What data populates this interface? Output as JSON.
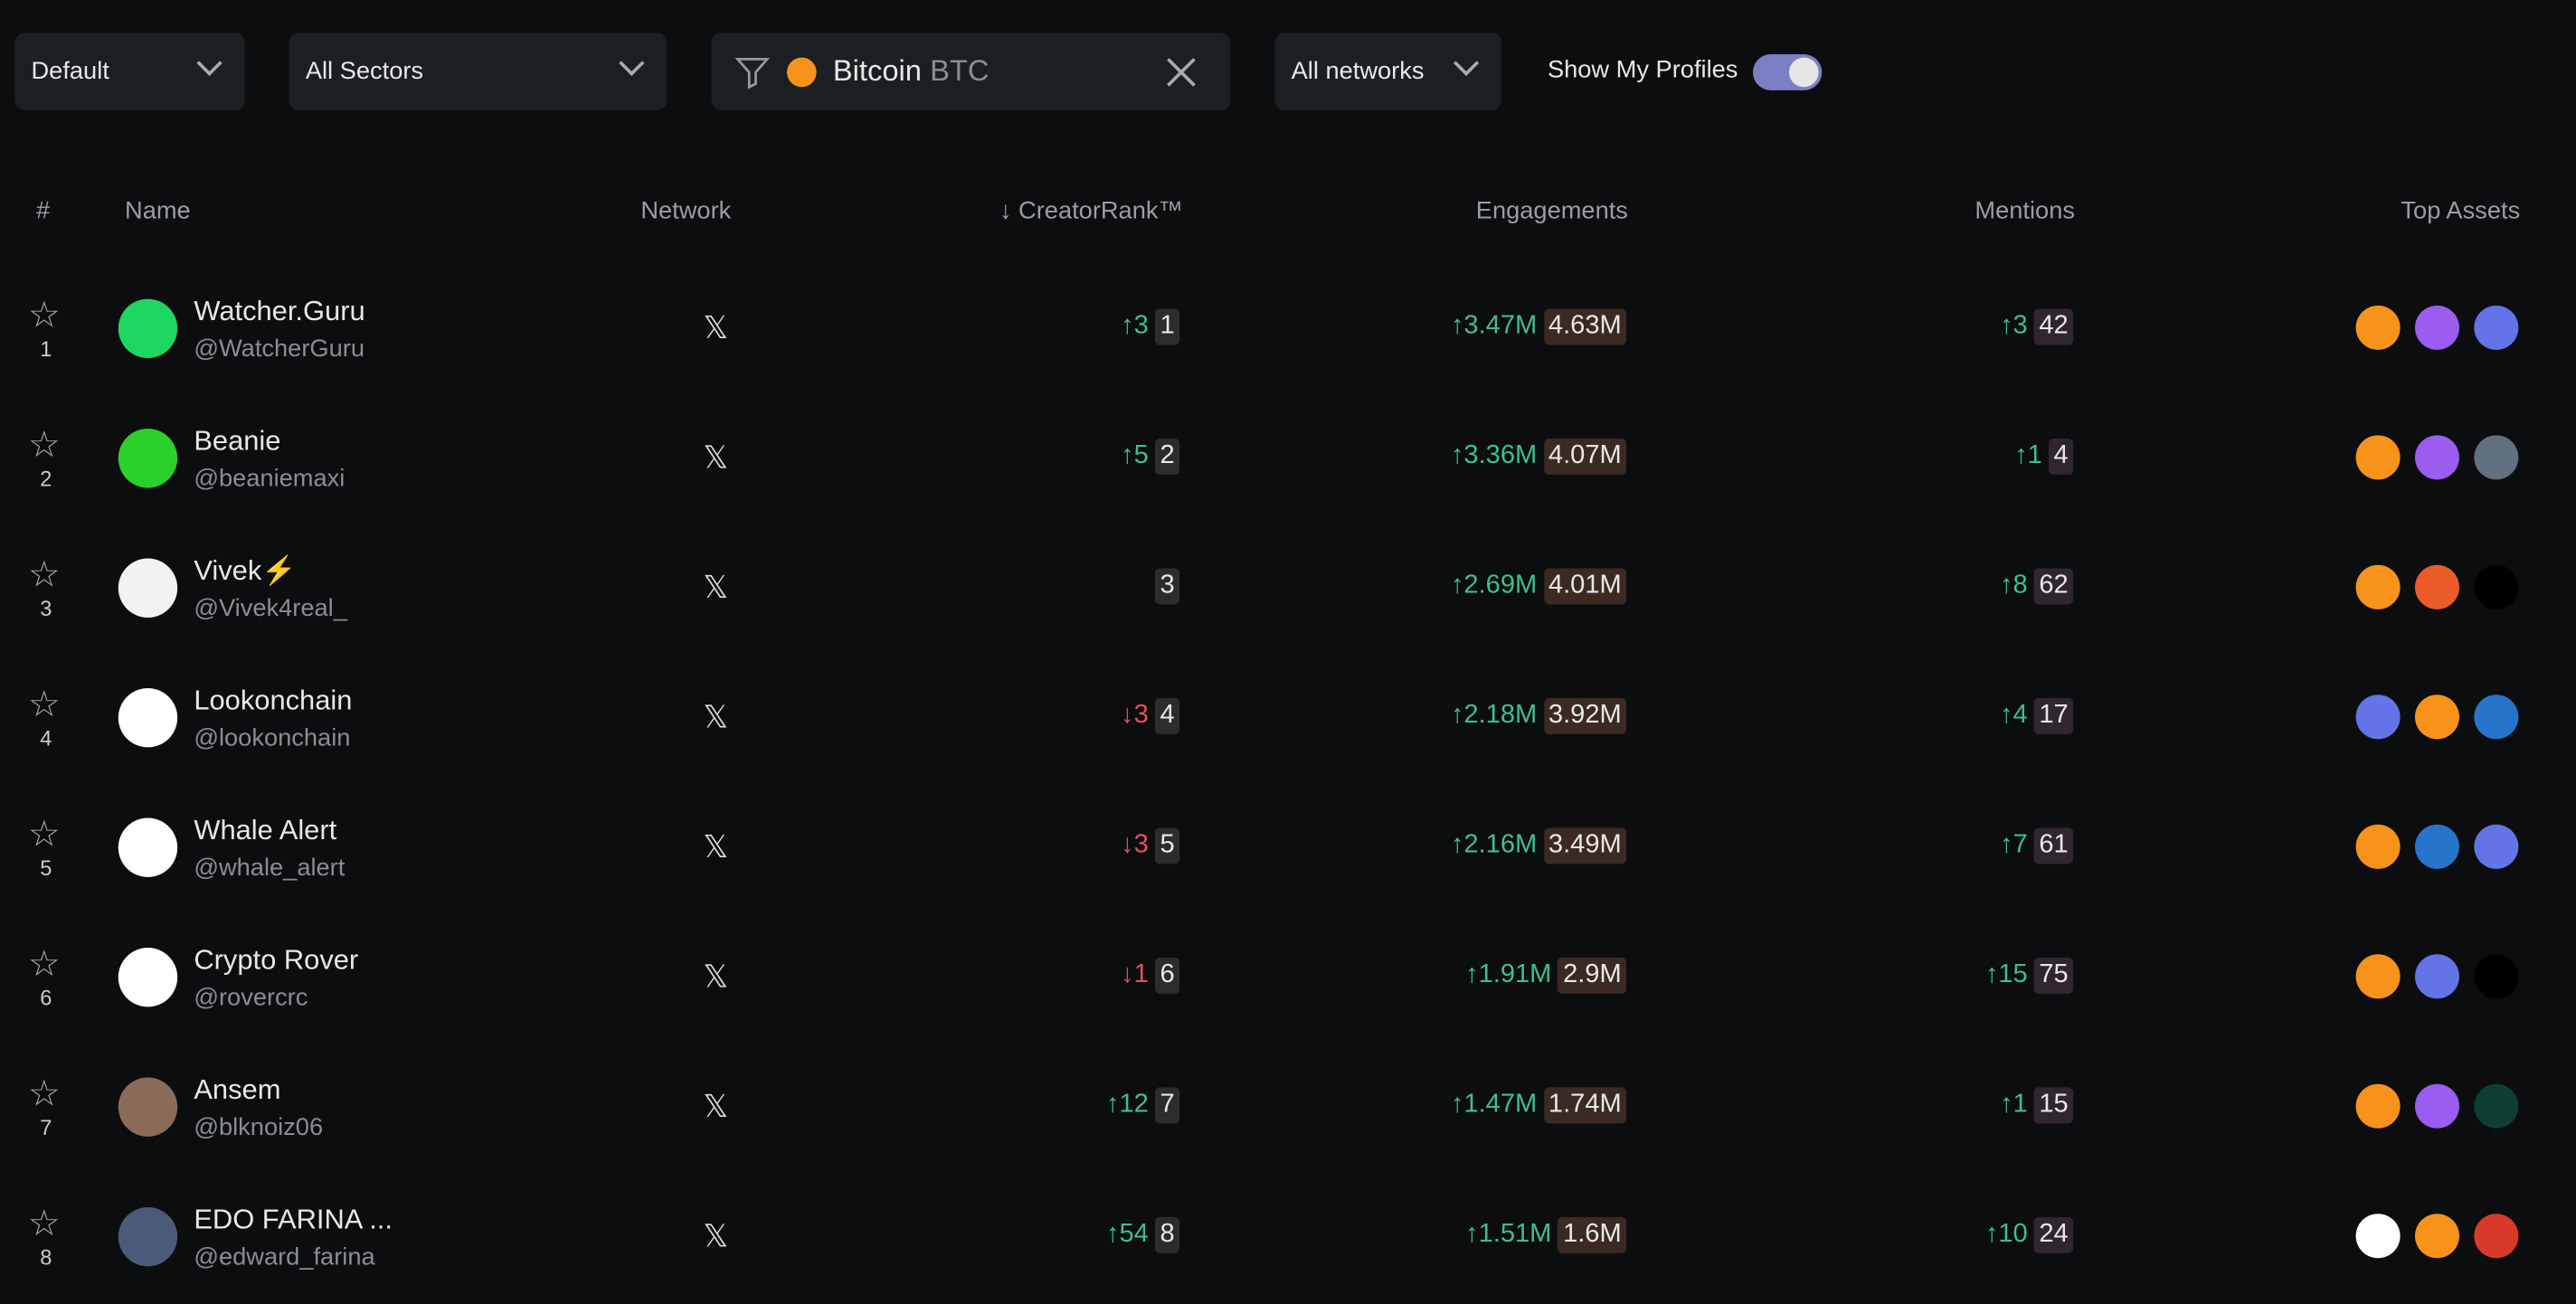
{
  "filters": {
    "sort": "Default",
    "sector": "All Sectors",
    "asset_name": "Bitcoin",
    "asset_symbol": "BTC",
    "network": "All networks",
    "toggle_label": "Show My Profiles"
  },
  "table": {
    "headers": [
      "#",
      "Name",
      "Network",
      "↓ CreatorRank™",
      "Engagements",
      "Mentions",
      "Top Assets"
    ],
    "rows": [
      {
        "number": "1",
        "name": "Watcher.Guru",
        "handle": "@WatcherGuru",
        "rank_change": "↑3",
        "creator_rank": "1",
        "engagements_change": "↑3.47M",
        "engagements": "4.63M",
        "mentions_change": "↑3",
        "mentions": "42"
      },
      {
        "number": "2",
        "name": "Beanie",
        "handle": "@beaniemaxi",
        "rank_change": "↑5",
        "creator_rank": "2",
        "engagements_change": "↑3.36M",
        "engagements": "4.07M",
        "mentions_change": "↑1",
        "mentions": "4"
      },
      {
        "number": "3",
        "name": "Vivek⚡",
        "handle": "@Vivek4real_",
        "creator_rank": "3",
        "engagements_change": "↑2.69M",
        "engagements": "4.01M",
        "mentions_change": "↑8",
        "mentions": "62"
      },
      {
        "number": "4",
        "name": "Lookonchain",
        "handle": "@lookonchain",
        "rank_change": "↓3",
        "creator_rank": "4",
        "engagements_change": "↑2.18M",
        "engagements": "3.92M",
        "mentions_change": "↑4",
        "mentions": "17"
      },
      {
        "number": "5",
        "name": "Whale Alert",
        "handle": "@whale_alert",
        "rank_change": "↓3",
        "creator_rank": "5",
        "engagements_change": "↑2.16M",
        "engagements": "3.49M",
        "mentions_change": "↑7",
        "mentions": "61"
      },
      {
        "number": "6",
        "name": "Crypto Rover",
        "handle": "@rovercrc",
        "rank_change": "↓1",
        "creator_rank": "6",
        "engagements_change": "↑1.91M",
        "engagements": "2.9M",
        "mentions_change": "↑15",
        "mentions": "75"
      },
      {
        "number": "7",
        "name": "Ansem",
        "handle": "@blknoiz06",
        "rank_change": "↑12",
        "creator_rank": "7",
        "engagements_change": "↑1.47M",
        "engagements": "1.74M",
        "mentions_change": "↑1",
        "mentions": "15"
      },
      {
        "number": "8",
        "name": "EDO FARINA ...",
        "handle": "@edward_farina",
        "rank_change": "↑54",
        "creator_rank": "8",
        "engagements_change": "↑1.51M",
        "engagements": "1.6M",
        "mentions_change": "↑10",
        "mentions": "24"
      }
    ]
  }
}
